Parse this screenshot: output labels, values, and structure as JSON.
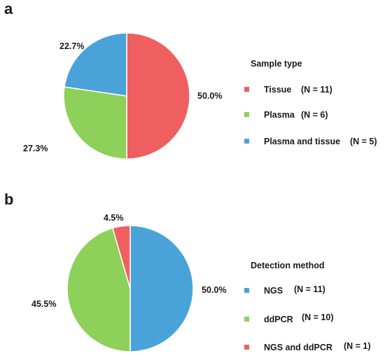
{
  "chart_data": [
    {
      "type": "pie",
      "panel_label": "a",
      "legend_title": "Sample type",
      "legend_position": "right",
      "slices": [
        {
          "label": "Tissue",
          "count_label": "(N = 11)",
          "value": 50.0,
          "value_label": "50.0%",
          "color": "#ef5f5f"
        },
        {
          "label": "Plasma",
          "count_label": "(N = 6)",
          "value": 27.3,
          "value_label": "27.3%",
          "color": "#8dd05a"
        },
        {
          "label": "Plasma and tissue",
          "count_label": "(N = 5)",
          "value": 22.7,
          "value_label": "22.7%",
          "color": "#4aa3d8"
        }
      ]
    },
    {
      "type": "pie",
      "panel_label": "b",
      "legend_title": "Detection method",
      "legend_position": "right",
      "slices": [
        {
          "label": "NGS",
          "count_label": "(N = 11)",
          "value": 50.0,
          "value_label": "50.0%",
          "color": "#4aa3d8"
        },
        {
          "label": "ddPCR",
          "count_label": "(N = 10)",
          "value": 45.5,
          "value_label": "45.5%",
          "color": "#8dd05a"
        },
        {
          "label": "NGS and ddPCR",
          "count_label": "(N = 1)",
          "value": 4.5,
          "value_label": "4.5%",
          "color": "#ef5f5f"
        }
      ]
    }
  ]
}
